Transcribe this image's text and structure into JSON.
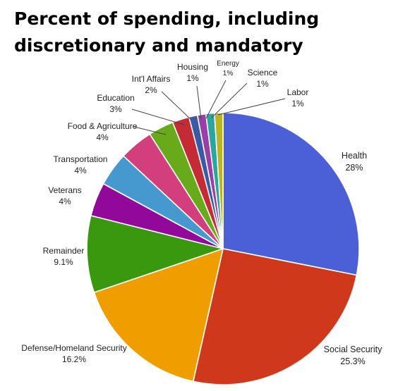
{
  "chart_data": {
    "type": "pie",
    "title": "Percent of spending, including discretionary and mandatory",
    "start": "12 o'clock",
    "direction": "clockwise",
    "slices": [
      {
        "label": "Health",
        "value_label": "28%",
        "value": 28,
        "color": "#4b5fd6"
      },
      {
        "label": "Social Security",
        "value_label": "25.3%",
        "value": 25.3,
        "color": "#d0381b"
      },
      {
        "label": "Defense/Homeland Security",
        "value_label": "16.2%",
        "value": 16.2,
        "color": "#f09d00"
      },
      {
        "label": "Remainder",
        "value_label": "9.1%",
        "value": 9.1,
        "color": "#3a980f"
      },
      {
        "label": "Veterans",
        "value_label": "4%",
        "value": 4,
        "color": "#920899"
      },
      {
        "label": "Transportation",
        "value_label": "4%",
        "value": 4,
        "color": "#4599cf"
      },
      {
        "label": "Food & Agriculture",
        "value_label": "4%",
        "value": 4,
        "color": "#d33e7c"
      },
      {
        "label": "Education",
        "value_label": "3%",
        "value": 3,
        "color": "#68aa1a"
      },
      {
        "label": "Int'l Affairs",
        "value_label": "2%",
        "value": 2,
        "color": "#c42b34"
      },
      {
        "label": "Housing",
        "value_label": "1%",
        "value": 1,
        "color": "#3b5aa6"
      },
      {
        "label": "Energy",
        "value_label": "1%",
        "value": 1,
        "color": "#9b3fa8"
      },
      {
        "label": "Science",
        "value_label": "1%",
        "value": 1,
        "color": "#2aa5a0"
      },
      {
        "label": "Labor",
        "value_label": "1%",
        "value": 1,
        "color": "#b9b520"
      }
    ]
  }
}
